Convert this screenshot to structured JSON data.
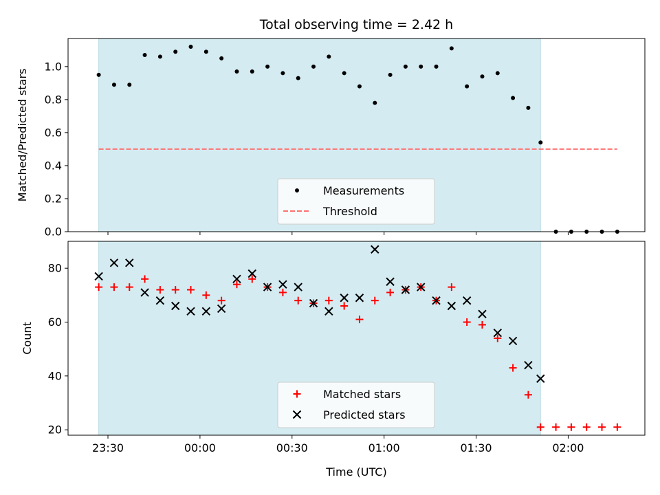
{
  "chart_data": [
    {
      "type": "scatter",
      "title": "Total observing time = 2.42 h",
      "ylabel": "Matched/Predicted stars",
      "xlabel": "",
      "ylim": [
        0,
        1.17
      ],
      "yticks": [
        0.0,
        0.2,
        0.4,
        0.6,
        0.8,
        1.0
      ],
      "ytick_labels": [
        "0.0",
        "0.2",
        "0.4",
        "0.6",
        "0.8",
        "1.0"
      ],
      "shaded_span": [
        "23:27",
        "01:51"
      ],
      "threshold": {
        "name": "Threshold",
        "value": 0.5,
        "x_range": [
          "23:27",
          "02:16"
        ],
        "color": "#ff7070"
      },
      "legend_position": "bottom-center",
      "series": [
        {
          "name": "Measurements",
          "marker": "dot",
          "color": "#000000",
          "x": [
            "23:27",
            "23:32",
            "23:37",
            "23:42",
            "23:47",
            "23:52",
            "23:57",
            "00:02",
            "00:07",
            "00:12",
            "00:17",
            "00:22",
            "00:27",
            "00:32",
            "00:37",
            "00:42",
            "00:47",
            "00:52",
            "00:57",
            "01:02",
            "01:07",
            "01:12",
            "01:17",
            "01:22",
            "01:27",
            "01:32",
            "01:37",
            "01:42",
            "01:47",
            "01:51",
            "01:56",
            "02:01",
            "02:06",
            "02:11",
            "02:16"
          ],
          "y": [
            0.95,
            0.89,
            0.89,
            1.07,
            1.06,
            1.09,
            1.12,
            1.09,
            1.05,
            0.97,
            0.97,
            1.0,
            0.96,
            0.93,
            1.0,
            1.06,
            0.96,
            0.88,
            0.78,
            0.95,
            1.0,
            1.0,
            1.0,
            1.11,
            0.88,
            0.94,
            0.96,
            0.81,
            0.75,
            0.54,
            0.0,
            0.0,
            0.0,
            0.0,
            0.0
          ]
        }
      ]
    },
    {
      "type": "scatter",
      "title": "",
      "ylabel": "Count",
      "xlabel": "Time (UTC)",
      "ylim": [
        18,
        90
      ],
      "yticks": [
        20,
        40,
        60,
        80
      ],
      "ytick_labels": [
        "20",
        "40",
        "60",
        "80"
      ],
      "xlim": [
        "23:17",
        "02:25"
      ],
      "xticks": [
        "23:30",
        "00:00",
        "00:30",
        "01:00",
        "01:30",
        "02:00"
      ],
      "xtick_labels": [
        "23:30",
        "00:00",
        "00:30",
        "01:00",
        "01:30",
        "02:00"
      ],
      "shaded_span": [
        "23:27",
        "01:51"
      ],
      "legend_position": "bottom-center",
      "series": [
        {
          "name": "Matched stars",
          "marker": "plus",
          "color": "#ff0000",
          "x": [
            "23:27",
            "23:32",
            "23:37",
            "23:42",
            "23:47",
            "23:52",
            "23:57",
            "00:02",
            "00:07",
            "00:12",
            "00:17",
            "00:22",
            "00:27",
            "00:32",
            "00:37",
            "00:42",
            "00:47",
            "00:52",
            "00:57",
            "01:02",
            "01:07",
            "01:12",
            "01:17",
            "01:22",
            "01:27",
            "01:32",
            "01:37",
            "01:42",
            "01:47",
            "01:51",
            "01:56",
            "02:01",
            "02:06",
            "02:11",
            "02:16"
          ],
          "y": [
            73,
            73,
            73,
            76,
            72,
            72,
            72,
            70,
            68,
            74,
            76,
            73,
            71,
            68,
            67,
            68,
            66,
            61,
            68,
            71,
            72,
            73,
            68,
            73,
            60,
            59,
            54,
            43,
            33,
            21,
            21,
            21,
            21,
            21,
            21
          ]
        },
        {
          "name": "Predicted stars",
          "marker": "x",
          "color": "#000000",
          "x": [
            "23:27",
            "23:32",
            "23:37",
            "23:42",
            "23:47",
            "23:52",
            "23:57",
            "00:02",
            "00:07",
            "00:12",
            "00:17",
            "00:22",
            "00:27",
            "00:32",
            "00:37",
            "00:42",
            "00:47",
            "00:52",
            "00:57",
            "01:02",
            "01:07",
            "01:12",
            "01:17",
            "01:22",
            "01:27",
            "01:32",
            "01:37",
            "01:42",
            "01:47",
            "01:51"
          ],
          "y": [
            77,
            82,
            82,
            71,
            68,
            66,
            64,
            64,
            65,
            76,
            78,
            73,
            74,
            73,
            67,
            64,
            69,
            69,
            87,
            75,
            72,
            73,
            68,
            66,
            68,
            63,
            56,
            53,
            44,
            39
          ]
        }
      ]
    }
  ],
  "colors": {
    "shade": "#d4ebf1",
    "shade_edge": "#b9dbe3"
  }
}
